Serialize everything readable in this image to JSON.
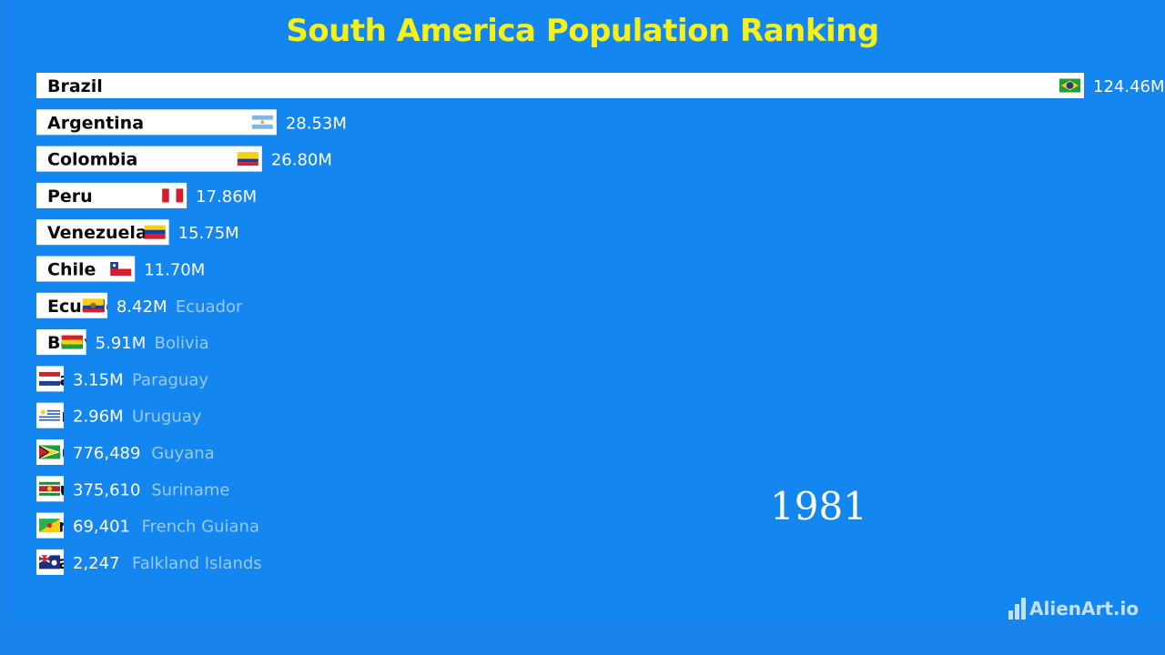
{
  "title": "South America Population Ranking",
  "year": "1981",
  "brand": "AlienArt.io",
  "colors": {
    "background": "#1486f0",
    "title": "#f4f01c",
    "bar": "#ffffff",
    "outside_name": "#9cc9f6"
  },
  "chart_data": {
    "type": "bar",
    "orientation": "horizontal",
    "title": "South America Population Ranking",
    "year": "1981",
    "grid": false,
    "legend": "none",
    "categories": [
      "Brazil",
      "Argentina",
      "Colombia",
      "Peru",
      "Venezuela",
      "Chile",
      "Ecuador",
      "Bolivia",
      "Paraguay",
      "Uruguay",
      "Guyana",
      "Suriname",
      "French Guiana",
      "Falkland Islands"
    ],
    "values": [
      124460000,
      28530000,
      26800000,
      17860000,
      15750000,
      11700000,
      8420000,
      5910000,
      3150000,
      2960000,
      776489,
      375610,
      69401,
      2247
    ],
    "value_labels": [
      "124.46M",
      "28.53M",
      "26.80M",
      "17.86M",
      "15.75M",
      "11.70M",
      "8.42M",
      "5.91M",
      "3.15M",
      "2.96M",
      "776,489",
      "375,610",
      "69,401",
      "2,247"
    ],
    "flags": [
      "brazil-flag",
      "argentina-flag",
      "colombia-flag",
      "peru-flag",
      "venezuela-flag",
      "chile-flag",
      "ecuador-flag",
      "bolivia-flag",
      "paraguay-flag",
      "uruguay-flag",
      "guyana-flag",
      "suriname-flag",
      "french-guiana-flag",
      "falkland-islands-flag"
    ]
  }
}
